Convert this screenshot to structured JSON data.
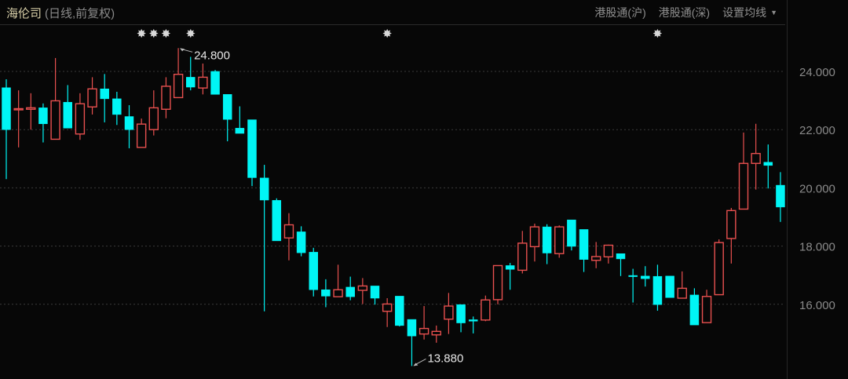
{
  "header": {
    "stock_name": "海伦司",
    "chart_mode": "(日线,前复权)",
    "links": [
      "港股通(沪)",
      "港股通(深)"
    ],
    "ma_setting": "设置均线"
  },
  "colors": {
    "up": "#e8504f",
    "down": "#00f5f5",
    "background": "#070707",
    "grid": "#333333"
  },
  "chart_data": {
    "type": "candlestick",
    "ylim": [
      13.5,
      25.0
    ],
    "yticks": [
      16,
      18,
      20,
      22,
      24
    ],
    "ytick_labels": [
      "16.000",
      "18.000",
      "20.000",
      "22.000",
      "24.000"
    ],
    "grid": "horizontal dotted",
    "candles_ohlc": [
      [
        23.44,
        23.73,
        20.3,
        22.0
      ],
      [
        22.68,
        23.35,
        21.39,
        22.72
      ],
      [
        22.7,
        23.25,
        22.0,
        22.75
      ],
      [
        22.75,
        22.9,
        21.56,
        22.2
      ],
      [
        21.67,
        24.46,
        21.67,
        22.99
      ],
      [
        22.94,
        23.53,
        22.05,
        22.05
      ],
      [
        21.85,
        23.25,
        21.65,
        22.89
      ],
      [
        22.78,
        23.8,
        22.52,
        23.4
      ],
      [
        23.4,
        23.91,
        22.25,
        23.06
      ],
      [
        23.06,
        23.3,
        22.16,
        22.52
      ],
      [
        22.45,
        22.84,
        21.36,
        22.0
      ],
      [
        21.39,
        22.38,
        21.39,
        22.19
      ],
      [
        22.0,
        23.35,
        21.8,
        22.75
      ],
      [
        22.7,
        23.8,
        22.39,
        23.49
      ],
      [
        23.1,
        24.8,
        23.1,
        23.9
      ],
      [
        23.8,
        24.5,
        23.35,
        23.46
      ],
      [
        23.43,
        24.27,
        23.21,
        23.8
      ],
      [
        24.0,
        24.05,
        23.21,
        23.21
      ],
      [
        23.21,
        23.21,
        21.6,
        22.35
      ],
      [
        22.05,
        22.8,
        21.87,
        21.87
      ],
      [
        22.34,
        22.34,
        20.06,
        20.35
      ],
      [
        20.34,
        20.79,
        15.76,
        19.58
      ],
      [
        19.57,
        19.64,
        18.18,
        18.18
      ],
      [
        18.28,
        19.13,
        17.51,
        18.73
      ],
      [
        18.49,
        18.68,
        17.65,
        17.77
      ],
      [
        17.79,
        17.94,
        16.27,
        16.5
      ],
      [
        16.5,
        16.86,
        15.9,
        16.28
      ],
      [
        16.26,
        17.36,
        16.26,
        16.5
      ],
      [
        16.59,
        16.95,
        16.14,
        16.26
      ],
      [
        16.48,
        16.9,
        16.01,
        16.63
      ],
      [
        16.63,
        16.63,
        15.99,
        16.21
      ],
      [
        15.76,
        16.21,
        15.22,
        16.01
      ],
      [
        16.28,
        16.28,
        15.24,
        15.27
      ],
      [
        15.48,
        15.48,
        13.88,
        14.91
      ],
      [
        14.98,
        15.94,
        14.79,
        15.17
      ],
      [
        14.95,
        15.27,
        14.68,
        15.07
      ],
      [
        15.49,
        16.39,
        14.98,
        15.94
      ],
      [
        15.99,
        15.99,
        15.04,
        15.36
      ],
      [
        15.47,
        15.58,
        15.0,
        15.42
      ],
      [
        15.46,
        16.3,
        15.42,
        16.15
      ],
      [
        16.16,
        17.33,
        16.0,
        17.33
      ],
      [
        17.33,
        17.42,
        16.5,
        17.2
      ],
      [
        17.17,
        18.52,
        17.06,
        18.1
      ],
      [
        17.98,
        18.77,
        17.47,
        18.66
      ],
      [
        18.66,
        18.75,
        17.38,
        17.76
      ],
      [
        17.74,
        18.71,
        17.6,
        18.66
      ],
      [
        18.9,
        18.9,
        17.85,
        17.99
      ],
      [
        18.57,
        18.57,
        17.11,
        17.54
      ],
      [
        17.51,
        18.14,
        17.24,
        17.64
      ],
      [
        17.63,
        18.05,
        17.4,
        18.03
      ],
      [
        17.74,
        17.74,
        16.97,
        17.56
      ],
      [
        16.99,
        17.22,
        16.06,
        16.97
      ],
      [
        16.97,
        17.31,
        16.61,
        16.88
      ],
      [
        16.96,
        17.36,
        15.78,
        15.99
      ],
      [
        16.97,
        16.97,
        16.23,
        16.23
      ],
      [
        16.21,
        17.13,
        16.21,
        16.55
      ],
      [
        16.32,
        16.55,
        15.29,
        15.29
      ],
      [
        15.37,
        16.5,
        15.37,
        16.27
      ],
      [
        16.33,
        18.23,
        16.33,
        18.12
      ],
      [
        18.26,
        19.31,
        17.4,
        19.22
      ],
      [
        19.27,
        21.9,
        19.27,
        20.84
      ],
      [
        20.84,
        22.2,
        19.94,
        21.18
      ],
      [
        20.88,
        21.49,
        19.98,
        20.77
      ],
      [
        20.09,
        20.54,
        18.83,
        19.34
      ]
    ],
    "event_marker_candle_indices": [
      11,
      12,
      13,
      15,
      31,
      53
    ],
    "annotations": [
      {
        "label": "24.800",
        "candle_index": 14,
        "price": 24.8
      },
      {
        "label": "13.880",
        "candle_index": 33,
        "price": 13.88
      }
    ]
  }
}
